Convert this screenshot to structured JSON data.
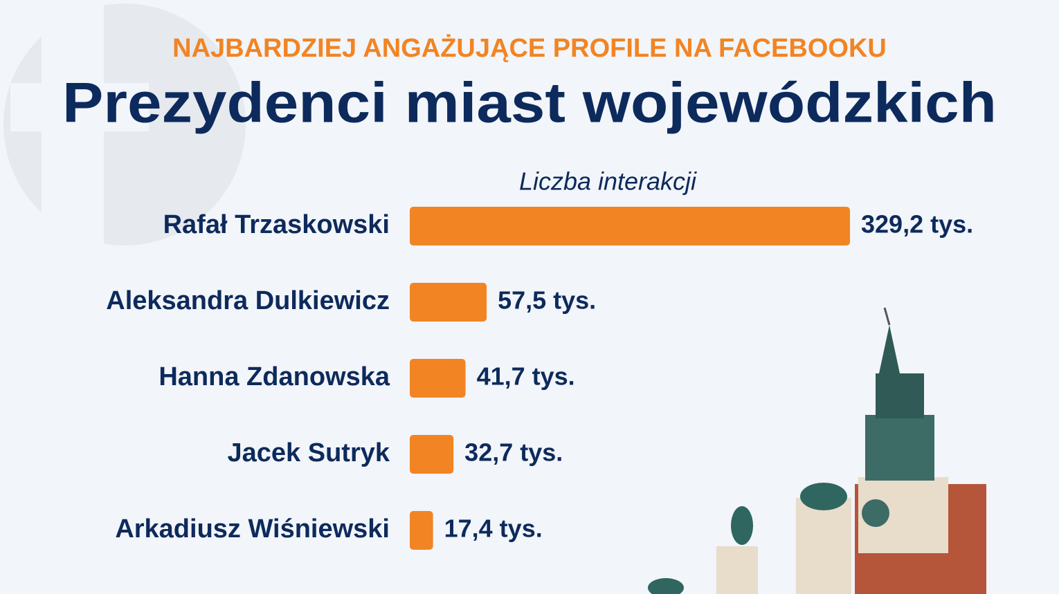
{
  "chart_data": {
    "type": "bar",
    "orientation": "horizontal",
    "subtitle": "NAJBARDZIEJ ANGAŻUJĄCE PROFILE NA FACEBOOKU",
    "title": "Prezydenci miast wojewódzkich",
    "x_label": "Liczba interakcji",
    "categories": [
      "Rafał Trzaskowski",
      "Aleksandra Dulkiewicz",
      "Hanna Zdanowska",
      "Jacek Sutryk",
      "Arkadiusz Wiśniewski"
    ],
    "values": [
      329.2,
      57.5,
      41.7,
      32.7,
      17.4
    ],
    "value_labels": [
      "329,2 tys.",
      "57,5 tys.",
      "41,7 tys.",
      "32,7 tys.",
      "17,4 tys."
    ],
    "color": "#f28423"
  }
}
